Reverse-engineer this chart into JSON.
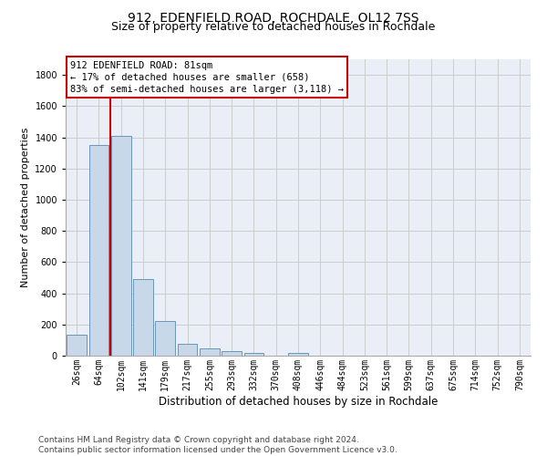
{
  "title1": "912, EDENFIELD ROAD, ROCHDALE, OL12 7SS",
  "title2": "Size of property relative to detached houses in Rochdale",
  "xlabel": "Distribution of detached houses by size in Rochdale",
  "ylabel": "Number of detached properties",
  "categories": [
    "26sqm",
    "64sqm",
    "102sqm",
    "141sqm",
    "179sqm",
    "217sqm",
    "255sqm",
    "293sqm",
    "332sqm",
    "370sqm",
    "408sqm",
    "446sqm",
    "484sqm",
    "523sqm",
    "561sqm",
    "599sqm",
    "637sqm",
    "675sqm",
    "714sqm",
    "752sqm",
    "790sqm"
  ],
  "values": [
    135,
    1350,
    1410,
    490,
    225,
    75,
    45,
    28,
    18,
    0,
    18,
    0,
    0,
    0,
    0,
    0,
    0,
    0,
    0,
    0,
    0
  ],
  "bar_color": "#c8d8e8",
  "bar_edge_color": "#5a8ab0",
  "vline_color": "#cc0000",
  "annotation_text": "912 EDENFIELD ROAD: 81sqm\n← 17% of detached houses are smaller (658)\n83% of semi-detached houses are larger (3,118) →",
  "annotation_box_color": "#cc0000",
  "annotation_facecolor": "#ffffff",
  "ylim": [
    0,
    1900
  ],
  "yticks": [
    0,
    200,
    400,
    600,
    800,
    1000,
    1200,
    1400,
    1600,
    1800
  ],
  "grid_color": "#cccccc",
  "bg_color": "#eaeff7",
  "footer": "Contains HM Land Registry data © Crown copyright and database right 2024.\nContains public sector information licensed under the Open Government Licence v3.0.",
  "title1_fontsize": 10,
  "title2_fontsize": 9,
  "xlabel_fontsize": 8.5,
  "ylabel_fontsize": 8,
  "tick_fontsize": 7,
  "footer_fontsize": 6.5,
  "ann_fontsize": 7.5
}
